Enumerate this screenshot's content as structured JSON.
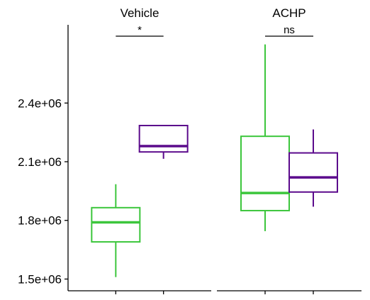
{
  "chart_data": {
    "type": "box",
    "facets": [
      {
        "label": "Vehicle",
        "significance": "*",
        "boxes": [
          {
            "color": "#3cc63c",
            "min": 1510000,
            "q1": 1690000,
            "median": 1790000,
            "q3": 1865000,
            "max": 1985000
          },
          {
            "color": "#5b0a8c",
            "min": 2115000,
            "q1": 2150000,
            "median": 2180000,
            "q3": 2285000,
            "max": 2285000
          }
        ]
      },
      {
        "label": "ACHP",
        "significance": "ns",
        "boxes": [
          {
            "color": "#3cc63c",
            "min": 1745000,
            "q1": 1850000,
            "median": 1940000,
            "q3": 2230000,
            "max": 2700000
          },
          {
            "color": "#5b0a8c",
            "min": 1870000,
            "q1": 1945000,
            "median": 2020000,
            "q3": 2145000,
            "max": 2265000
          }
        ]
      }
    ],
    "y_ticks": [
      {
        "value": 1500000,
        "label": "1.5e+06"
      },
      {
        "value": 1800000,
        "label": "1.8e+06"
      },
      {
        "value": 2100000,
        "label": "2.1e+06"
      },
      {
        "value": 2400000,
        "label": "2.4e+06"
      }
    ],
    "ylim": [
      1440000,
      2800000
    ],
    "xlabel": "",
    "ylabel": "",
    "legend": "none"
  }
}
